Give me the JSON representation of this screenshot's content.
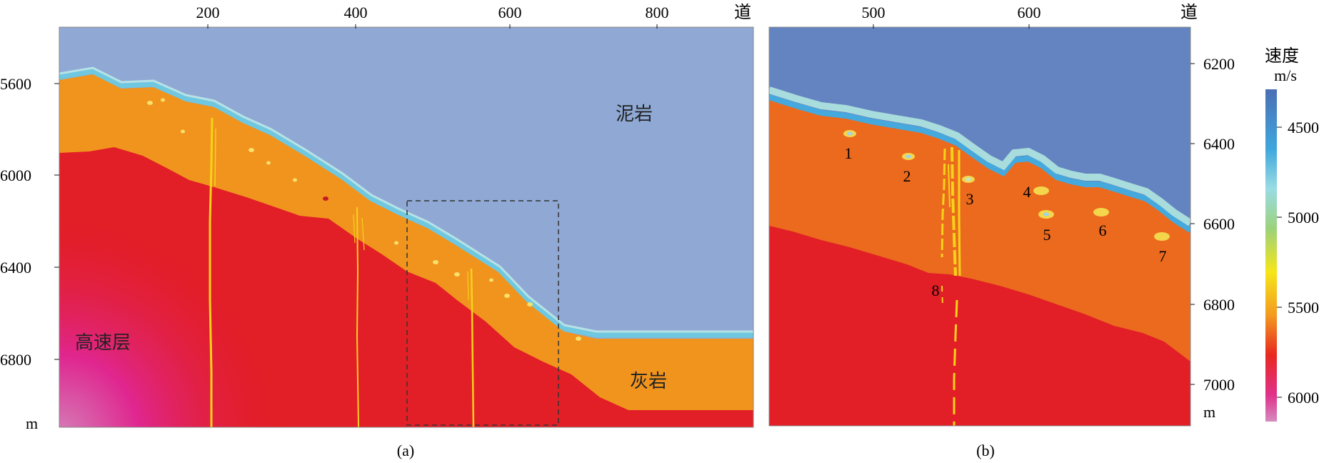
{
  "panel_a": {
    "top_ticks": [
      "200",
      "400",
      "600",
      "800"
    ],
    "top_unit": "道",
    "left_ticks": [
      "5600",
      "6000",
      "6400",
      "6800"
    ],
    "left_unit": "m",
    "labels": {
      "mudstone": "泥岩",
      "limestone": "灰岩",
      "high_velocity": "高速层"
    },
    "caption": "(a)"
  },
  "panel_b": {
    "top_ticks": [
      "500",
      "600"
    ],
    "top_unit": "道",
    "right_ticks": [
      "6200",
      "6400",
      "6600",
      "6800",
      "7000"
    ],
    "right_unit": "m",
    "markers": [
      "1",
      "2",
      "3",
      "4",
      "5",
      "6",
      "7",
      "8"
    ],
    "caption": "(b)"
  },
  "colorbar": {
    "title": "速度",
    "unit": "m/s",
    "ticks": [
      "4500",
      "5000",
      "5500",
      "6000"
    ]
  },
  "colors": {
    "mudstone": "#8FA9D4",
    "mudstone_dark": "#6384C0",
    "limestone": "#F0941E",
    "limestone_b": "#EB6A1E",
    "high_velocity": "#E21E26",
    "magenta": "#E5308C",
    "cyan_band": "#6FC8E0",
    "pale_band": "#B7E2E6",
    "vein": "#F7D21A"
  }
}
